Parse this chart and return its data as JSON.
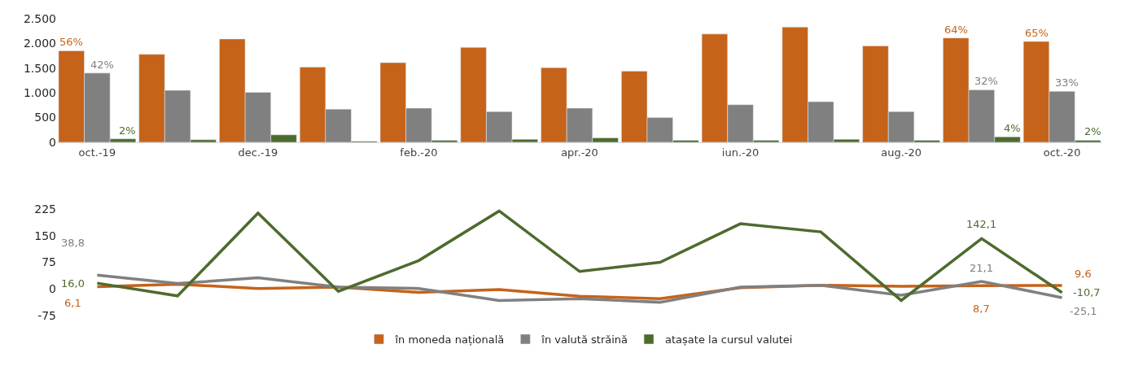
{
  "chart_data": [
    {
      "type": "bar",
      "categories": [
        "oct.-19",
        null,
        "dec.-19",
        null,
        "feb.-20",
        null,
        "apr.-20",
        null,
        "iun.-20",
        null,
        "aug.-20",
        null,
        "oct.-20"
      ],
      "ylim": [
        0,
        2500
      ],
      "yticks": [
        {
          "value": 0,
          "label": "0"
        },
        {
          "value": 500,
          "label": "500"
        },
        {
          "value": 1000,
          "label": "1.000"
        },
        {
          "value": 1500,
          "label": "1.500"
        },
        {
          "value": 2000,
          "label": "2.000"
        },
        {
          "value": 2500,
          "label": "2.500"
        }
      ],
      "legend": "bottom",
      "series": [
        {
          "name": "în moneda națională",
          "color": "#c5631a",
          "values": [
            1850,
            1780,
            2090,
            1520,
            1610,
            1920,
            1510,
            1440,
            2190,
            2330,
            1950,
            2110,
            2040
          ]
        },
        {
          "name": "în valută străină",
          "color": "#808080",
          "values": [
            1400,
            1050,
            1010,
            670,
            690,
            620,
            690,
            500,
            760,
            820,
            620,
            1060,
            1030
          ]
        },
        {
          "name": "atașate la cursul valutei",
          "color": "#4e6b2e",
          "values": [
            70,
            50,
            150,
            20,
            40,
            60,
            90,
            40,
            40,
            60,
            40,
            110,
            40
          ]
        }
      ],
      "annotations": [
        {
          "text": "56%",
          "y": 1850
        },
        {
          "text": "42%",
          "x": "oct.-19",
          "y": 1400
        },
        {
          "text": "2%",
          "x": "oct.-19",
          "y": 70
        },
        {
          "text": "64%",
          "y": 2110
        },
        {
          "text": "32%",
          "y": 1060
        },
        {
          "text": "4%",
          "y": 110
        },
        {
          "text": "65%",
          "y": 2040
        },
        {
          "text": "33%",
          "x": "oct.-20",
          "y": 1030
        },
        {
          "text": "2%",
          "x": "oct.-20",
          "y": 40
        }
      ]
    },
    {
      "type": "line",
      "categories": [
        null,
        null,
        null,
        null,
        null,
        null,
        null,
        null,
        null,
        null,
        null,
        null,
        null
      ],
      "ylim": [
        -75,
        225
      ],
      "yticks": [
        -75,
        0,
        75,
        150,
        225
      ],
      "tick_labels": "y",
      "legend": "bottom",
      "series": [
        {
          "name": "în moneda națională",
          "color": "#c5631a",
          "values": [
            6.1,
            13,
            1,
            5,
            -10,
            -2,
            -21,
            -28,
            3,
            10,
            7,
            8.7,
            9.6
          ],
          "value_labels": [
            "6,1",
            null,
            null,
            null,
            null,
            null,
            null,
            null,
            null,
            null,
            null,
            "8,7",
            "9,6"
          ]
        },
        {
          "name": "în valută străină",
          "color": "#808080",
          "values": [
            38.8,
            15,
            31,
            5,
            1,
            -33,
            -28,
            -38,
            5,
            10,
            -18,
            21.1,
            -25.1
          ],
          "value_labels": [
            "38,8",
            null,
            null,
            null,
            null,
            null,
            null,
            null,
            null,
            null,
            null,
            "21,1",
            "-25,1"
          ]
        },
        {
          "name": "atașate la cursul valutei",
          "color": "#4e6b2e",
          "values": [
            16.0,
            -20,
            214,
            -7,
            80,
            220,
            49,
            75,
            184,
            161,
            -33,
            142.1,
            -10.7
          ],
          "value_labels": [
            "16,0",
            null,
            null,
            null,
            null,
            null,
            null,
            null,
            null,
            null,
            null,
            "142,1",
            "-10,7"
          ]
        }
      ]
    }
  ]
}
